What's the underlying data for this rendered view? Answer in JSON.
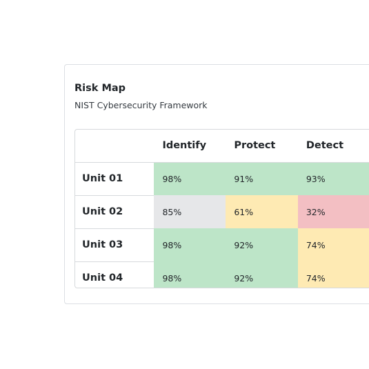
{
  "card": {
    "title": "Risk Map",
    "subtitle": "NIST Cybersecurity Framework"
  },
  "table": {
    "columns": [
      "",
      "Identify",
      "Protect",
      "Detect"
    ],
    "rows": [
      {
        "label": "Unit 01",
        "cells": [
          {
            "value": "98%",
            "level": "good"
          },
          {
            "value": "91%",
            "level": "good"
          },
          {
            "value": "93%",
            "level": "good"
          }
        ]
      },
      {
        "label": "Unit 02",
        "cells": [
          {
            "value": "85%",
            "level": "neutral"
          },
          {
            "value": "61%",
            "level": "warn"
          },
          {
            "value": "32%",
            "level": "bad"
          }
        ]
      },
      {
        "label": "Unit 03",
        "cells": [
          {
            "value": "98%",
            "level": "good"
          },
          {
            "value": "92%",
            "level": "good"
          },
          {
            "value": "74%",
            "level": "warn"
          }
        ]
      },
      {
        "label": "Unit 04",
        "cells": [
          {
            "value": "98%",
            "level": "good"
          },
          {
            "value": "92%",
            "level": "good"
          },
          {
            "value": "74%",
            "level": "warn"
          }
        ]
      }
    ]
  },
  "colors": {
    "good": "#bde5c8",
    "neutral": "#e6e7e9",
    "warn": "#feeab3",
    "bad": "#f3bfc3"
  }
}
